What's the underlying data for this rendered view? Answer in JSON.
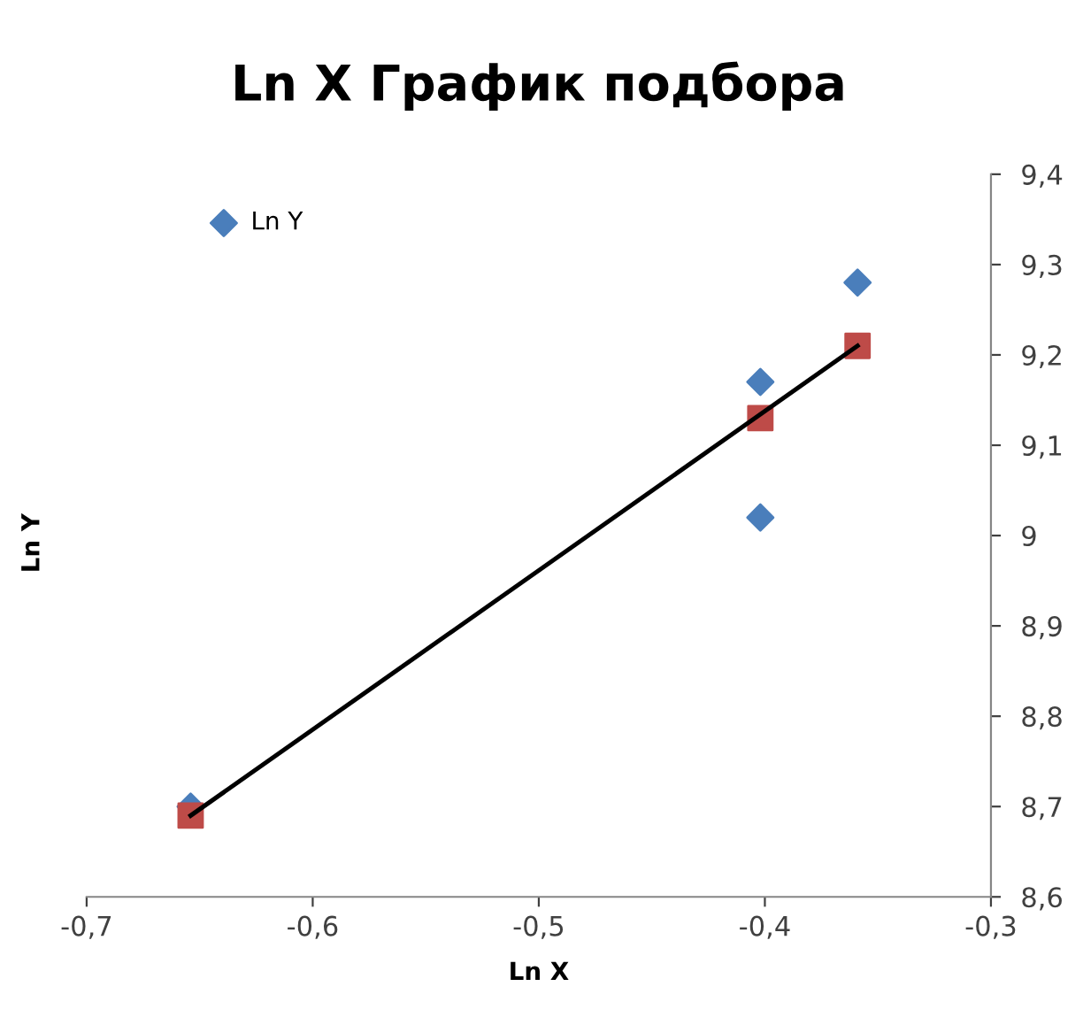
{
  "chart_data": {
    "type": "scatter",
    "title": "Ln X График подбора",
    "xlabel": "Ln X",
    "ylabel": "Ln Y",
    "xlim": [
      -0.7,
      -0.3
    ],
    "xticks": [
      {
        "value": -0.7,
        "label": "-0,7"
      },
      {
        "value": -0.6,
        "label": "-0,6"
      },
      {
        "value": -0.5,
        "label": "-0,5"
      },
      {
        "value": -0.4,
        "label": "-0,4"
      },
      {
        "value": -0.3,
        "label": "-0,3"
      }
    ],
    "ylim": [
      8.6,
      9.4
    ],
    "yticks": [
      {
        "value": 8.6,
        "label": "8,6"
      },
      {
        "value": 8.7,
        "label": "8,7"
      },
      {
        "value": 8.8,
        "label": "8,8"
      },
      {
        "value": 8.9,
        "label": "8,9"
      },
      {
        "value": 9,
        "label": "9"
      },
      {
        "value": 9.1,
        "label": "9,1"
      },
      {
        "value": 9.2,
        "label": "9,2"
      },
      {
        "value": 9.3,
        "label": "9,3"
      },
      {
        "value": 9.4,
        "label": "9,4"
      }
    ],
    "grid": false,
    "legend": "top left",
    "series": [
      {
        "name": "Ln Y",
        "marker": "diamond",
        "color": "#4a7ebb",
        "x": [
          -0.654,
          -0.402,
          -0.402,
          -0.359
        ],
        "values": [
          8.7,
          9.17,
          9.02,
          9.28
        ]
      },
      {
        "marker": "square",
        "color": "#be4b48",
        "x": [
          -0.654,
          -0.402,
          -0.359
        ],
        "values": [
          8.69,
          9.13,
          9.21
        ]
      },
      {
        "type": "line",
        "marker": "none",
        "color": "#000000",
        "x": [
          -0.654,
          -0.359
        ],
        "values": [
          8.69,
          9.21
        ]
      }
    ]
  }
}
